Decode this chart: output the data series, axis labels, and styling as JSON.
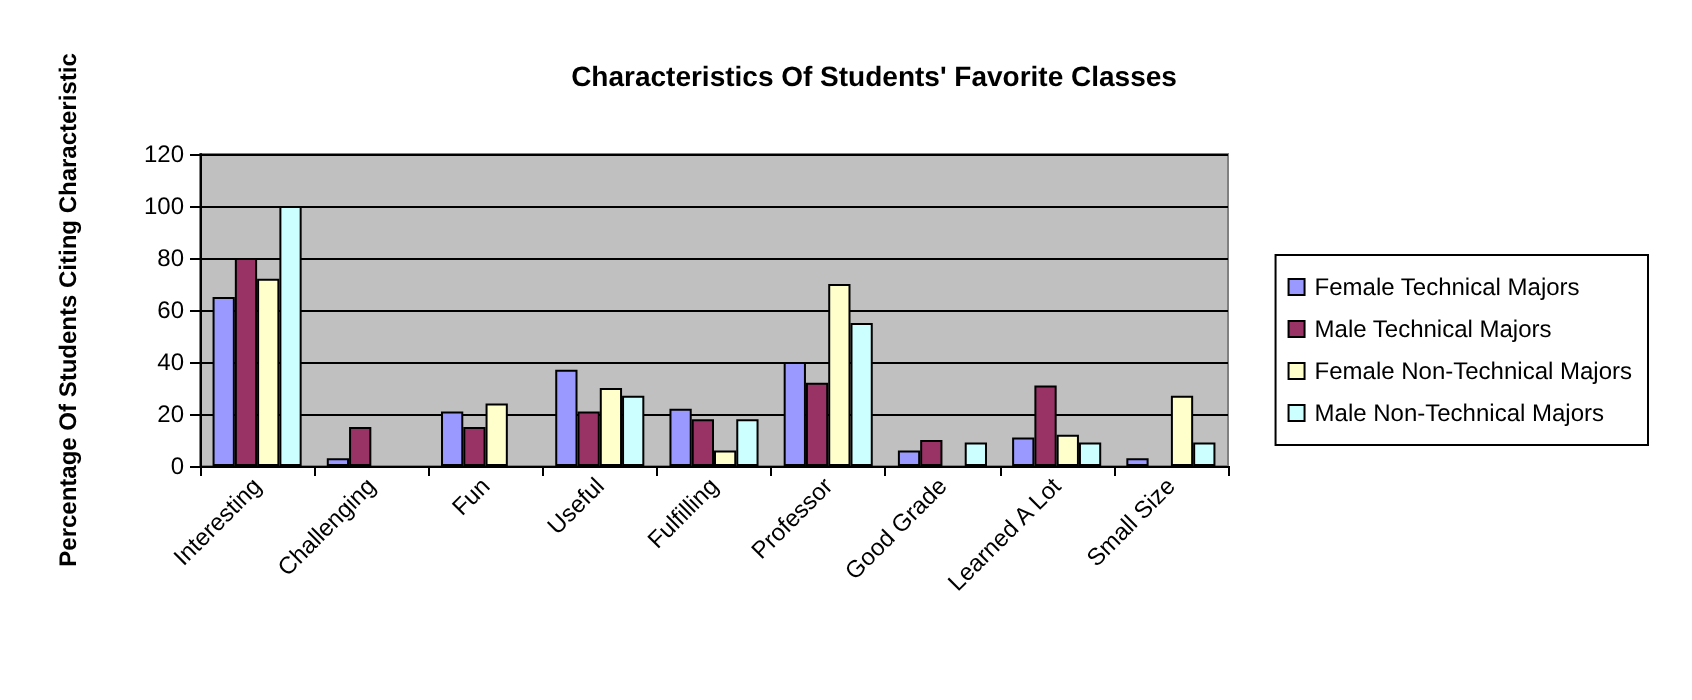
{
  "chart_data": {
    "type": "bar",
    "title": "Characteristics Of Students' Favorite Classes",
    "ylabel": "Percentage Of Students Citing Characteristic",
    "categories": [
      "Interesting",
      "Challenging",
      "Fun",
      "Useful",
      "Fulfilling",
      "Professor",
      "Good Grade",
      "Learned A Lot",
      "Small Size"
    ],
    "series": [
      {
        "name": "Female Technical Majors",
        "color": "#9999ff",
        "values": [
          65,
          3,
          21,
          37,
          22,
          40,
          6,
          11,
          3
        ]
      },
      {
        "name": "Male Technical Majors",
        "color": "#993366",
        "values": [
          80,
          15,
          15,
          21,
          18,
          32,
          10,
          31,
          null
        ]
      },
      {
        "name": "Female Non-Technical Majors",
        "color": "#ffffcc",
        "values": [
          72,
          null,
          24,
          30,
          6,
          70,
          null,
          12,
          27
        ]
      },
      {
        "name": "Male Non-Technical Majors",
        "color": "#ccffff",
        "values": [
          100,
          null,
          null,
          27,
          18,
          55,
          9,
          9,
          9
        ]
      }
    ],
    "ylim": [
      0,
      120
    ],
    "yticks": [
      0,
      20,
      40,
      60,
      80,
      100,
      120
    ],
    "grid": "y",
    "legend": "right"
  }
}
